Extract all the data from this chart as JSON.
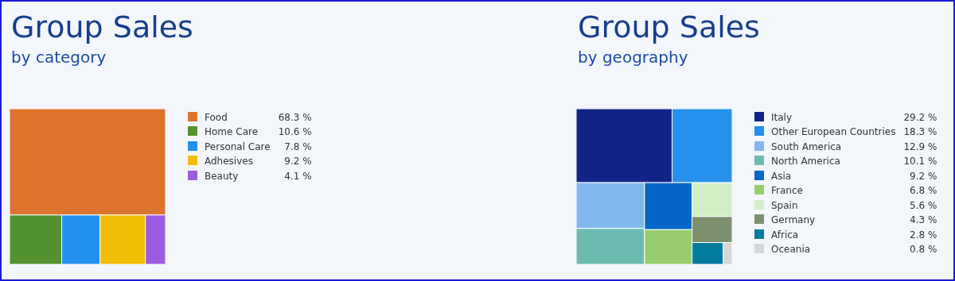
{
  "chart_data": [
    {
      "type": "other",
      "title": "Group Sales",
      "subtitle": "by category",
      "categories": [
        "Food",
        "Home Care",
        "Personal Care",
        "Adhesives",
        "Beauty"
      ],
      "values": [
        68.3,
        10.6,
        7.8,
        9.2,
        4.1
      ],
      "value_labels": [
        "68.3 %",
        "10.6 %",
        "7.8 %",
        "9.2 %",
        "4.1 %"
      ],
      "colors": [
        "#dd742e",
        "#52922f",
        "#2490ee",
        "#f2bd05",
        "#9b5de0"
      ]
    },
    {
      "type": "other",
      "title": "Group Sales",
      "subtitle": "by geography",
      "categories": [
        "Italy",
        "Other European Countries",
        "South America",
        "North America",
        "Asia",
        "France",
        "Spain",
        "Germany",
        "Africa",
        "Oceania"
      ],
      "values": [
        29.2,
        18.3,
        12.9,
        10.1,
        9.2,
        6.8,
        5.6,
        4.3,
        2.8,
        0.8
      ],
      "value_labels": [
        "29.2 %",
        "18.3 %",
        "12.9 %",
        "10.1 %",
        "9.2 %",
        "6.8 %",
        "5.6 %",
        "4.3 %",
        "2.8 %",
        "0.8 %"
      ],
      "colors": [
        "#102488",
        "#2690ee",
        "#80b8ee",
        "#6bbbb0",
        "#0466c8",
        "#96cc6e",
        "#d2f0c8",
        "#7d906e",
        "#037b9f",
        "#d6d6d6"
      ]
    }
  ]
}
